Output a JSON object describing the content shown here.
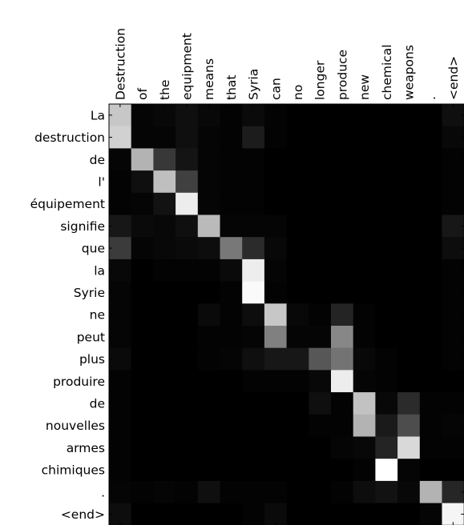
{
  "chart_data": {
    "type": "heatmap",
    "title": "",
    "xlabel": "",
    "ylabel": "",
    "colormap": "grayscale (0 = black, 1 = white)",
    "x_labels": [
      "Destruction",
      "of",
      "the",
      "equipment",
      "means",
      "that",
      "Syria",
      "can",
      "no",
      "longer",
      "produce",
      "new",
      "chemical",
      "weapons",
      ".",
      "<end>"
    ],
    "y_labels": [
      "La",
      "destruction",
      "de",
      "l'",
      "équipement",
      "signifie",
      "que",
      "la",
      "Syrie",
      "ne",
      "peut",
      "plus",
      "produire",
      "de",
      "nouvelles",
      "armes",
      "chimiques",
      ".",
      "<end>"
    ],
    "values": [
      [
        0.78,
        0.02,
        0.03,
        0.06,
        0.03,
        0.01,
        0.04,
        0.01,
        0.0,
        0.0,
        0.0,
        0.0,
        0.0,
        0.0,
        0.0,
        0.06
      ],
      [
        0.82,
        0.02,
        0.02,
        0.06,
        0.02,
        0.01,
        0.11,
        0.01,
        0.0,
        0.0,
        0.0,
        0.0,
        0.0,
        0.0,
        0.0,
        0.03
      ],
      [
        0.02,
        0.7,
        0.22,
        0.08,
        0.02,
        0.01,
        0.01,
        0.0,
        0.0,
        0.0,
        0.0,
        0.0,
        0.0,
        0.0,
        0.0,
        0.01
      ],
      [
        0.01,
        0.06,
        0.75,
        0.25,
        0.02,
        0.01,
        0.01,
        0.0,
        0.0,
        0.0,
        0.0,
        0.0,
        0.0,
        0.0,
        0.0,
        0.01
      ],
      [
        0.01,
        0.02,
        0.07,
        0.93,
        0.02,
        0.01,
        0.01,
        0.0,
        0.0,
        0.0,
        0.0,
        0.0,
        0.0,
        0.0,
        0.0,
        0.01
      ],
      [
        0.09,
        0.04,
        0.03,
        0.06,
        0.73,
        0.02,
        0.02,
        0.02,
        0.0,
        0.0,
        0.0,
        0.0,
        0.0,
        0.0,
        0.0,
        0.09
      ],
      [
        0.23,
        0.02,
        0.03,
        0.04,
        0.05,
        0.47,
        0.17,
        0.03,
        0.0,
        0.0,
        0.0,
        0.0,
        0.0,
        0.0,
        0.0,
        0.05
      ],
      [
        0.03,
        0.0,
        0.01,
        0.01,
        0.01,
        0.04,
        0.93,
        0.02,
        0.0,
        0.0,
        0.0,
        0.0,
        0.0,
        0.0,
        0.0,
        0.01
      ],
      [
        0.02,
        0.0,
        0.0,
        0.0,
        0.0,
        0.01,
        0.98,
        0.01,
        0.0,
        0.0,
        0.0,
        0.0,
        0.0,
        0.0,
        0.0,
        0.01
      ],
      [
        0.02,
        0.0,
        0.0,
        0.0,
        0.04,
        0.01,
        0.05,
        0.78,
        0.03,
        0.01,
        0.14,
        0.01,
        0.0,
        0.0,
        0.0,
        0.01
      ],
      [
        0.02,
        0.0,
        0.0,
        0.0,
        0.01,
        0.01,
        0.02,
        0.5,
        0.02,
        0.02,
        0.53,
        0.01,
        0.0,
        0.0,
        0.0,
        0.01
      ],
      [
        0.04,
        0.0,
        0.0,
        0.0,
        0.01,
        0.02,
        0.06,
        0.09,
        0.09,
        0.34,
        0.45,
        0.03,
        0.01,
        0.0,
        0.0,
        0.01
      ],
      [
        0.01,
        0.0,
        0.0,
        0.0,
        0.0,
        0.0,
        0.01,
        0.01,
        0.01,
        0.03,
        0.93,
        0.02,
        0.01,
        0.0,
        0.0,
        0.0
      ],
      [
        0.01,
        0.0,
        0.0,
        0.0,
        0.0,
        0.0,
        0.0,
        0.0,
        0.0,
        0.06,
        0.01,
        0.76,
        0.03,
        0.17,
        0.01,
        0.01
      ],
      [
        0.01,
        0.0,
        0.0,
        0.0,
        0.0,
        0.0,
        0.0,
        0.0,
        0.0,
        0.01,
        0.01,
        0.7,
        0.1,
        0.3,
        0.01,
        0.02
      ],
      [
        0.01,
        0.0,
        0.0,
        0.0,
        0.0,
        0.0,
        0.0,
        0.0,
        0.0,
        0.0,
        0.02,
        0.03,
        0.14,
        0.85,
        0.01,
        0.01
      ],
      [
        0.01,
        0.0,
        0.0,
        0.0,
        0.0,
        0.0,
        0.0,
        0.0,
        0.0,
        0.0,
        0.0,
        0.01,
        1.0,
        0.02,
        0.0,
        0.0
      ],
      [
        0.02,
        0.01,
        0.02,
        0.01,
        0.06,
        0.01,
        0.01,
        0.01,
        0.0,
        0.0,
        0.01,
        0.05,
        0.07,
        0.03,
        0.7,
        0.15
      ],
      [
        0.05,
        0.0,
        0.0,
        0.0,
        0.0,
        0.0,
        0.01,
        0.04,
        0.0,
        0.0,
        0.0,
        0.0,
        0.0,
        0.0,
        0.02,
        0.96
      ]
    ]
  }
}
